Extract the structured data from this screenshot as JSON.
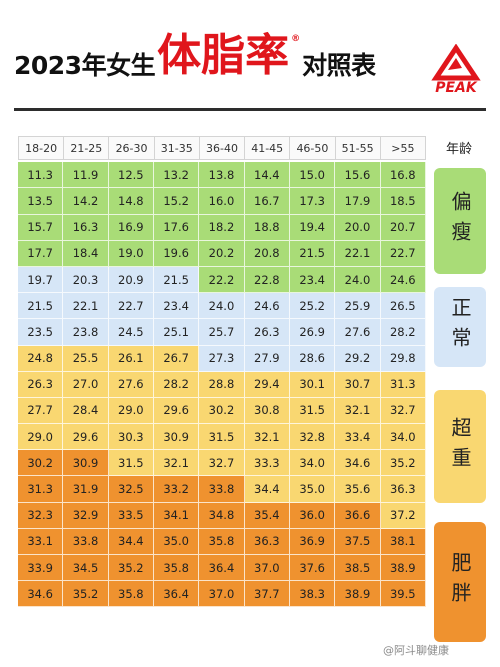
{
  "title": {
    "part1": "2023年女生",
    "highlight": "体脂率",
    "reg_mark": "®",
    "part2": "对照表"
  },
  "logo": {
    "text": "PEAK",
    "color": "#e0161c"
  },
  "table": {
    "age_label": "年龄",
    "columns": [
      "18-20",
      "21-25",
      "26-30",
      "31-35",
      "36-40",
      "41-45",
      "46-50",
      "51-55",
      ">55"
    ],
    "colors": {
      "green": "#a9dc77",
      "blue": "#d6e6f7",
      "yellow": "#f9d771",
      "amber": "#f6b85a",
      "orange": "#ef922f"
    },
    "rows": [
      {
        "values": [
          "11.3",
          "11.9",
          "12.5",
          "13.2",
          "13.8",
          "14.4",
          "15.0",
          "15.6",
          "16.8"
        ],
        "colors": [
          "green",
          "green",
          "green",
          "green",
          "green",
          "green",
          "green",
          "green",
          "green"
        ]
      },
      {
        "values": [
          "13.5",
          "14.2",
          "14.8",
          "15.2",
          "16.0",
          "16.7",
          "17.3",
          "17.9",
          "18.5"
        ],
        "colors": [
          "green",
          "green",
          "green",
          "green",
          "green",
          "green",
          "green",
          "green",
          "green"
        ]
      },
      {
        "values": [
          "15.7",
          "16.3",
          "16.9",
          "17.6",
          "18.2",
          "18.8",
          "19.4",
          "20.0",
          "20.7"
        ],
        "colors": [
          "green",
          "green",
          "green",
          "green",
          "green",
          "green",
          "green",
          "green",
          "green"
        ]
      },
      {
        "values": [
          "17.7",
          "18.4",
          "19.0",
          "19.6",
          "20.2",
          "20.8",
          "21.5",
          "22.1",
          "22.7"
        ],
        "colors": [
          "green",
          "green",
          "green",
          "green",
          "green",
          "green",
          "green",
          "green",
          "green"
        ]
      },
      {
        "values": [
          "19.7",
          "20.3",
          "20.9",
          "21.5",
          "22.2",
          "22.8",
          "23.4",
          "24.0",
          "24.6"
        ],
        "colors": [
          "blue",
          "blue",
          "blue",
          "blue",
          "green",
          "green",
          "green",
          "green",
          "green"
        ]
      },
      {
        "values": [
          "21.5",
          "22.1",
          "22.7",
          "23.4",
          "24.0",
          "24.6",
          "25.2",
          "25.9",
          "26.5"
        ],
        "colors": [
          "blue",
          "blue",
          "blue",
          "blue",
          "blue",
          "blue",
          "blue",
          "blue",
          "blue"
        ]
      },
      {
        "values": [
          "23.5",
          "23.8",
          "24.5",
          "25.1",
          "25.7",
          "26.3",
          "26.9",
          "27.6",
          "28.2"
        ],
        "colors": [
          "blue",
          "blue",
          "blue",
          "blue",
          "blue",
          "blue",
          "blue",
          "blue",
          "blue"
        ]
      },
      {
        "values": [
          "24.8",
          "25.5",
          "26.1",
          "26.7",
          "27.3",
          "27.9",
          "28.6",
          "29.2",
          "29.8"
        ],
        "colors": [
          "yellow",
          "yellow",
          "yellow",
          "yellow",
          "blue",
          "blue",
          "blue",
          "blue",
          "blue"
        ]
      },
      {
        "values": [
          "26.3",
          "27.0",
          "27.6",
          "28.2",
          "28.8",
          "29.4",
          "30.1",
          "30.7",
          "31.3"
        ],
        "colors": [
          "yellow",
          "yellow",
          "yellow",
          "yellow",
          "yellow",
          "yellow",
          "yellow",
          "yellow",
          "yellow"
        ]
      },
      {
        "values": [
          "27.7",
          "28.4",
          "29.0",
          "29.6",
          "30.2",
          "30.8",
          "31.5",
          "32.1",
          "32.7"
        ],
        "colors": [
          "yellow",
          "yellow",
          "yellow",
          "yellow",
          "yellow",
          "yellow",
          "yellow",
          "yellow",
          "yellow"
        ]
      },
      {
        "values": [
          "29.0",
          "29.6",
          "30.3",
          "30.9",
          "31.5",
          "32.1",
          "32.8",
          "33.4",
          "34.0"
        ],
        "colors": [
          "yellow",
          "yellow",
          "yellow",
          "yellow",
          "yellow",
          "yellow",
          "yellow",
          "yellow",
          "yellow"
        ]
      },
      {
        "values": [
          "30.2",
          "30.9",
          "31.5",
          "32.1",
          "32.7",
          "33.3",
          "34.0",
          "34.6",
          "35.2"
        ],
        "colors": [
          "orange",
          "orange",
          "yellow",
          "yellow",
          "yellow",
          "yellow",
          "yellow",
          "yellow",
          "yellow"
        ]
      },
      {
        "values": [
          "31.3",
          "31.9",
          "32.5",
          "33.2",
          "33.8",
          "34.4",
          "35.0",
          "35.6",
          "36.3"
        ],
        "colors": [
          "orange",
          "orange",
          "orange",
          "orange",
          "orange",
          "yellow",
          "yellow",
          "yellow",
          "yellow"
        ]
      },
      {
        "values": [
          "32.3",
          "32.9",
          "33.5",
          "34.1",
          "34.8",
          "35.4",
          "36.0",
          "36.6",
          "37.2"
        ],
        "colors": [
          "orange",
          "orange",
          "orange",
          "orange",
          "orange",
          "orange",
          "orange",
          "orange",
          "yellow"
        ]
      },
      {
        "values": [
          "33.1",
          "33.8",
          "34.4",
          "35.0",
          "35.8",
          "36.3",
          "36.9",
          "37.5",
          "38.1"
        ],
        "colors": [
          "orange",
          "orange",
          "orange",
          "orange",
          "orange",
          "orange",
          "orange",
          "orange",
          "orange"
        ]
      },
      {
        "values": [
          "33.9",
          "34.5",
          "35.2",
          "35.8",
          "36.4",
          "37.0",
          "37.6",
          "38.5",
          "38.9"
        ],
        "colors": [
          "orange",
          "orange",
          "orange",
          "orange",
          "orange",
          "orange",
          "orange",
          "orange",
          "orange"
        ]
      },
      {
        "values": [
          "34.6",
          "35.2",
          "35.8",
          "36.4",
          "37.0",
          "37.7",
          "38.3",
          "38.9",
          "39.5"
        ],
        "colors": [
          "orange",
          "orange",
          "orange",
          "orange",
          "orange",
          "orange",
          "orange",
          "orange",
          "orange"
        ]
      }
    ]
  },
  "categories": [
    {
      "label": "偏瘦",
      "color": "green"
    },
    {
      "label": "正常",
      "color": "blue"
    },
    {
      "label": "超重",
      "color": "yellow"
    },
    {
      "label": "肥胖",
      "color": "orange"
    }
  ],
  "watermark": "@阿斗聊健康"
}
